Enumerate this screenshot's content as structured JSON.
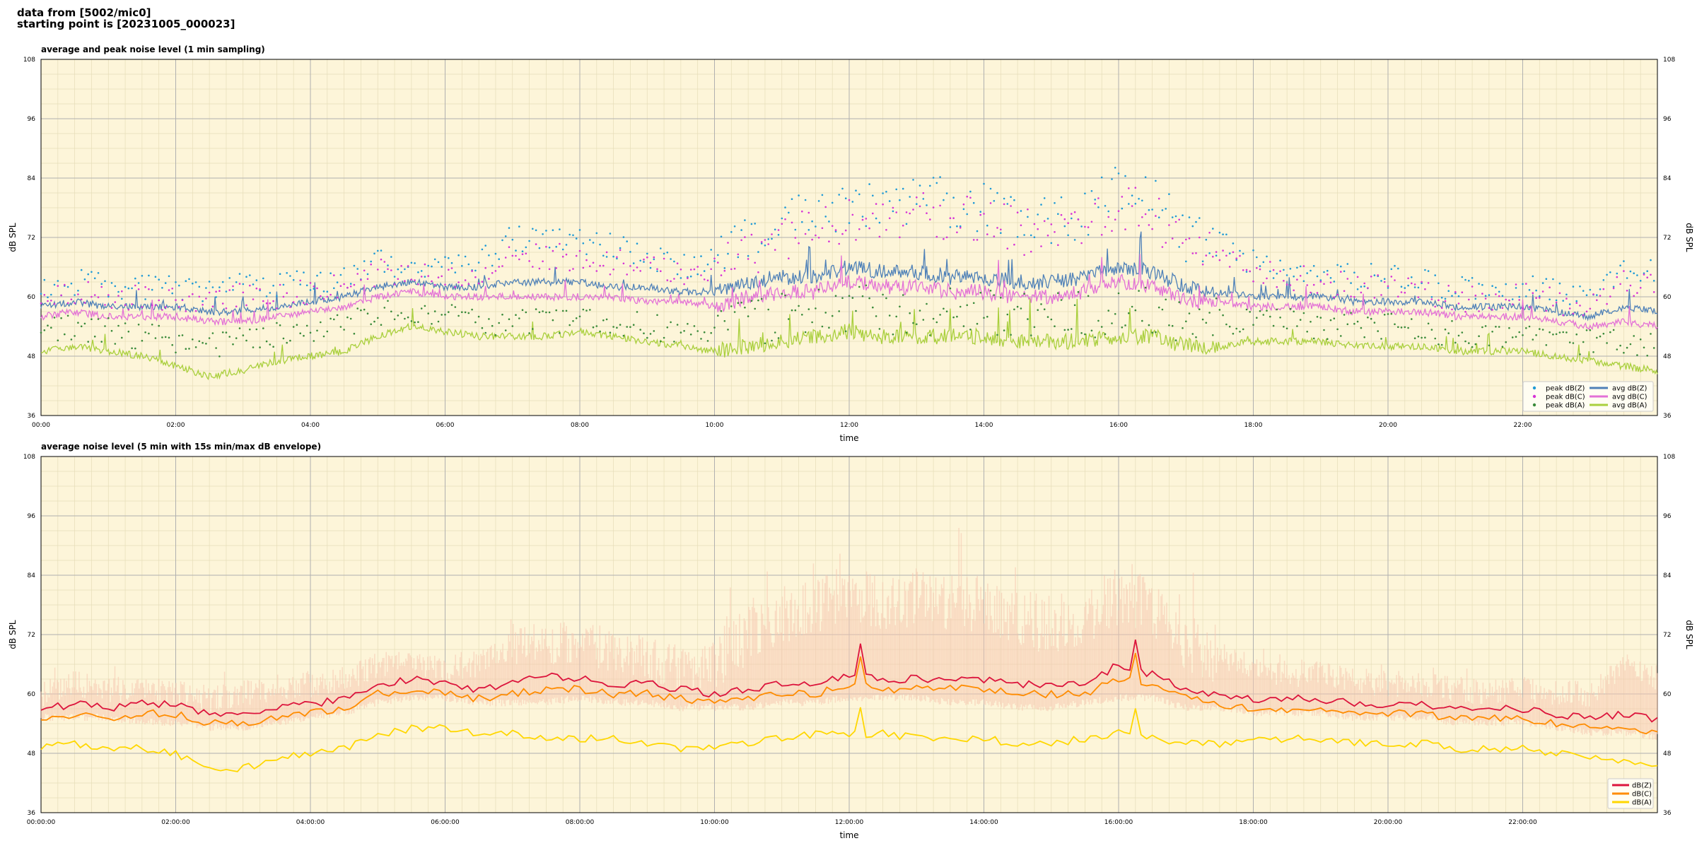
{
  "header": {
    "line1": "data from [5002/mic0]",
    "line2": "starting point is [20231005_000023]"
  },
  "colors": {
    "background": "#fdf5d9",
    "z": "#4f81b8",
    "c": "#e371d6",
    "a": "#a9cf3c",
    "z_env": "#dc143c",
    "c_env": "#ff8c00",
    "a_env": "#ffd700",
    "envelope_fill": "#f6c7b0"
  },
  "chart_data": [
    {
      "type": "line",
      "title": "average and peak noise level (1 min sampling)",
      "xlabel": "time",
      "ylabel": "dB SPL",
      "ylim": [
        36,
        108
      ],
      "yticks": [
        "36",
        "48",
        "60",
        "72",
        "84",
        "96",
        "108"
      ],
      "xlim_hours": [
        0,
        24
      ],
      "xticks": [
        "00:00",
        "02:00",
        "04:00",
        "06:00",
        "08:00",
        "10:00",
        "12:00",
        "14:00",
        "16:00",
        "18:00",
        "20:00",
        "22:00"
      ],
      "grid": true,
      "legend_position": "lower-right",
      "x_hours": [
        0,
        0.5,
        1,
        1.5,
        2,
        2.5,
        3,
        3.5,
        4,
        4.5,
        5,
        5.5,
        6,
        6.5,
        7,
        7.5,
        8,
        8.5,
        9,
        9.5,
        10,
        10.5,
        11,
        11.5,
        12,
        12.5,
        13,
        13.5,
        14,
        14.5,
        15,
        15.5,
        16,
        16.5,
        17,
        17.5,
        18,
        18.5,
        19,
        19.5,
        20,
        20.5,
        21,
        21.5,
        22,
        22.5,
        23,
        23.5,
        24
      ],
      "series": [
        {
          "name": "peak dB(Z)",
          "kind": "scatter",
          "color": "#1f9ad6",
          "values": [
            61,
            63,
            62,
            62,
            62,
            61,
            62,
            62,
            63,
            64,
            67,
            66,
            66,
            67,
            72,
            71,
            71,
            70,
            68,
            66,
            67,
            72,
            75,
            76,
            78,
            79,
            80,
            79,
            78,
            76,
            75,
            77,
            82,
            80,
            72,
            71,
            67,
            66,
            65,
            64,
            64,
            63,
            62,
            61,
            62,
            61,
            61,
            66,
            65
          ]
        },
        {
          "name": "peak dB(C)",
          "kind": "scatter",
          "color": "#d633d6",
          "values": [
            59,
            61,
            60,
            60,
            60,
            59,
            60,
            60,
            61,
            62,
            65,
            64,
            64,
            65,
            69,
            68,
            68,
            67,
            66,
            64,
            65,
            69,
            72,
            73,
            75,
            76,
            77,
            76,
            75,
            73,
            72,
            74,
            79,
            77,
            69,
            68,
            65,
            64,
            63,
            62,
            62,
            61,
            60,
            59,
            60,
            59,
            59,
            63,
            62
          ]
        },
        {
          "name": "peak dB(A)",
          "kind": "scatter",
          "color": "#3a8a3a",
          "values": [
            53,
            54,
            53,
            52,
            51,
            50,
            51,
            52,
            53,
            54,
            57,
            57,
            56,
            55,
            55,
            55,
            56,
            55,
            54,
            53,
            54,
            55,
            56,
            57,
            58,
            57,
            57,
            57,
            57,
            56,
            56,
            56,
            57,
            57,
            55,
            55,
            55,
            55,
            54,
            54,
            54,
            53,
            53,
            52,
            52,
            51,
            51,
            51,
            50
          ]
        },
        {
          "name": "avg dB(Z)",
          "kind": "line",
          "color": "#4f81b8",
          "values": [
            58,
            59,
            58,
            58,
            58,
            57,
            57,
            58,
            59,
            60,
            62,
            63,
            62,
            62,
            63,
            63,
            63,
            62,
            62,
            61,
            61,
            63,
            64,
            64,
            66,
            65,
            65,
            64,
            64,
            63,
            63,
            64,
            66,
            65,
            62,
            61,
            60,
            60,
            60,
            59,
            59,
            59,
            58,
            58,
            58,
            57,
            56,
            58,
            57
          ]
        },
        {
          "name": "avg dB(C)",
          "kind": "line",
          "color": "#e371d6",
          "values": [
            56,
            57,
            56,
            56,
            56,
            55,
            55,
            56,
            57,
            58,
            60,
            61,
            60,
            60,
            60,
            60,
            60,
            60,
            59,
            59,
            58,
            60,
            61,
            61,
            63,
            62,
            62,
            61,
            61,
            60,
            60,
            61,
            63,
            62,
            59,
            59,
            58,
            58,
            58,
            57,
            57,
            57,
            56,
            56,
            56,
            55,
            54,
            55,
            54
          ]
        },
        {
          "name": "avg dB(A)",
          "kind": "line",
          "color": "#a9cf3c",
          "values": [
            49,
            50,
            49,
            48,
            46,
            44,
            45,
            47,
            48,
            49,
            52,
            54,
            53,
            52,
            52,
            52,
            53,
            52,
            51,
            50,
            49,
            50,
            51,
            52,
            53,
            52,
            52,
            52,
            52,
            51,
            51,
            51,
            52,
            52,
            50,
            50,
            51,
            51,
            51,
            50,
            50,
            50,
            49,
            49,
            49,
            48,
            47,
            46,
            45
          ]
        }
      ]
    },
    {
      "type": "line",
      "title": "average noise level (5 min with 15s min/max dB envelope)",
      "xlabel": "time",
      "ylabel": "dB SPL",
      "ylim": [
        36,
        108
      ],
      "yticks": [
        "36",
        "48",
        "60",
        "72",
        "84",
        "96",
        "108"
      ],
      "xlim_hours": [
        0,
        24
      ],
      "xticks": [
        "00:00:00",
        "02:00:00",
        "04:00:00",
        "06:00:00",
        "08:00:00",
        "10:00:00",
        "12:00:00",
        "14:00:00",
        "16:00:00",
        "18:00:00",
        "20:00:00",
        "22:00:00"
      ],
      "grid": true,
      "legend_position": "lower-right",
      "x_hours": [
        0,
        0.5,
        1,
        1.5,
        2,
        2.5,
        3,
        3.5,
        4,
        4.5,
        5,
        5.5,
        6,
        6.5,
        7,
        7.5,
        8,
        8.5,
        9,
        9.5,
        10,
        10.5,
        11,
        11.5,
        12,
        12.5,
        13,
        13.5,
        14,
        14.5,
        15,
        15.5,
        16,
        16.5,
        17,
        17.5,
        18,
        18.5,
        19,
        19.5,
        20,
        20.5,
        21,
        21.5,
        22,
        22.5,
        23,
        23.5,
        24
      ],
      "envelope_max": [
        60,
        62,
        61,
        61,
        60,
        59,
        60,
        61,
        62,
        63,
        66,
        66,
        65,
        66,
        70,
        70,
        70,
        69,
        67,
        65,
        66,
        72,
        76,
        78,
        80,
        78,
        79,
        78,
        78,
        75,
        74,
        76,
        80,
        78,
        70,
        68,
        65,
        64,
        64,
        63,
        62,
        62,
        61,
        60,
        61,
        60,
        60,
        66,
        63
      ],
      "envelope_min": [
        56,
        56,
        56,
        55,
        55,
        54,
        54,
        55,
        56,
        57,
        59,
        60,
        60,
        59,
        59,
        59,
        60,
        59,
        59,
        58,
        58,
        58,
        59,
        59,
        60,
        60,
        60,
        59,
        59,
        58,
        58,
        59,
        60,
        60,
        58,
        58,
        57,
        57,
        57,
        56,
        56,
        56,
        55,
        55,
        55,
        54,
        53,
        53,
        52
      ],
      "series": [
        {
          "name": "dB(Z)",
          "color": "#dc143c",
          "values": [
            57,
            58,
            57,
            58,
            58,
            56,
            56,
            57,
            58,
            59,
            62,
            63,
            62,
            61,
            62,
            64,
            63,
            62,
            62,
            61,
            60,
            61,
            62,
            62,
            64,
            63,
            63,
            63,
            63,
            62,
            62,
            62,
            66,
            64,
            61,
            60,
            59,
            59,
            59,
            58,
            58,
            58,
            57,
            57,
            57,
            56,
            55,
            56,
            55
          ]
        },
        {
          "name": "dB(C)",
          "color": "#ff8c00",
          "values": [
            55,
            56,
            55,
            56,
            56,
            54,
            54,
            55,
            56,
            57,
            60,
            61,
            60,
            59,
            60,
            61,
            61,
            60,
            60,
            59,
            58,
            59,
            60,
            60,
            62,
            61,
            61,
            61,
            61,
            60,
            60,
            60,
            63,
            62,
            59,
            58,
            57,
            57,
            57,
            56,
            56,
            56,
            55,
            55,
            55,
            54,
            53,
            53,
            52
          ]
        },
        {
          "name": "dB(A)",
          "color": "#ffd700",
          "values": [
            49,
            50,
            49,
            49,
            48,
            45,
            45,
            47,
            48,
            49,
            52,
            53,
            53,
            52,
            52,
            51,
            51,
            51,
            50,
            49,
            49,
            50,
            51,
            52,
            52,
            52,
            51,
            51,
            51,
            50,
            50,
            51,
            52,
            51,
            50,
            50,
            51,
            51,
            51,
            50,
            50,
            50,
            49,
            49,
            49,
            48,
            47,
            46,
            45
          ]
        }
      ]
    }
  ]
}
